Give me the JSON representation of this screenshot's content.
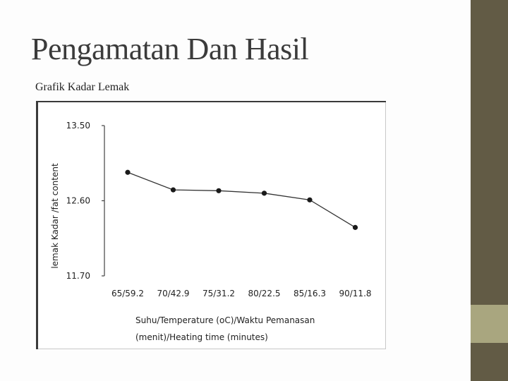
{
  "slide": {
    "title": "Pengamatan Dan Hasil",
    "subtitle": "Grafik Kadar Lemak"
  },
  "colors": {
    "side_bar": "#625b45",
    "side_accent": "#a9a67f",
    "line": "#333333"
  },
  "chart_data": {
    "type": "line",
    "title": "",
    "xlabel_line1": "Suhu/Temperature (oC)/Waktu Pemanasan",
    "xlabel_line2": "(menit)/Heating time (minutes)",
    "ylabel": "lemak Kadar /fat content",
    "categories": [
      "65/59.2",
      "70/42.9",
      "75/31.2",
      "80/22.5",
      "85/16.3",
      "90/11.8"
    ],
    "y_ticks": [
      "13.50",
      "12.60",
      "11.70"
    ],
    "ylim": [
      11.7,
      13.5
    ],
    "grid": false,
    "series": [
      {
        "values": [
          12.94,
          12.73,
          12.72,
          12.69,
          12.61,
          12.28
        ]
      }
    ]
  }
}
